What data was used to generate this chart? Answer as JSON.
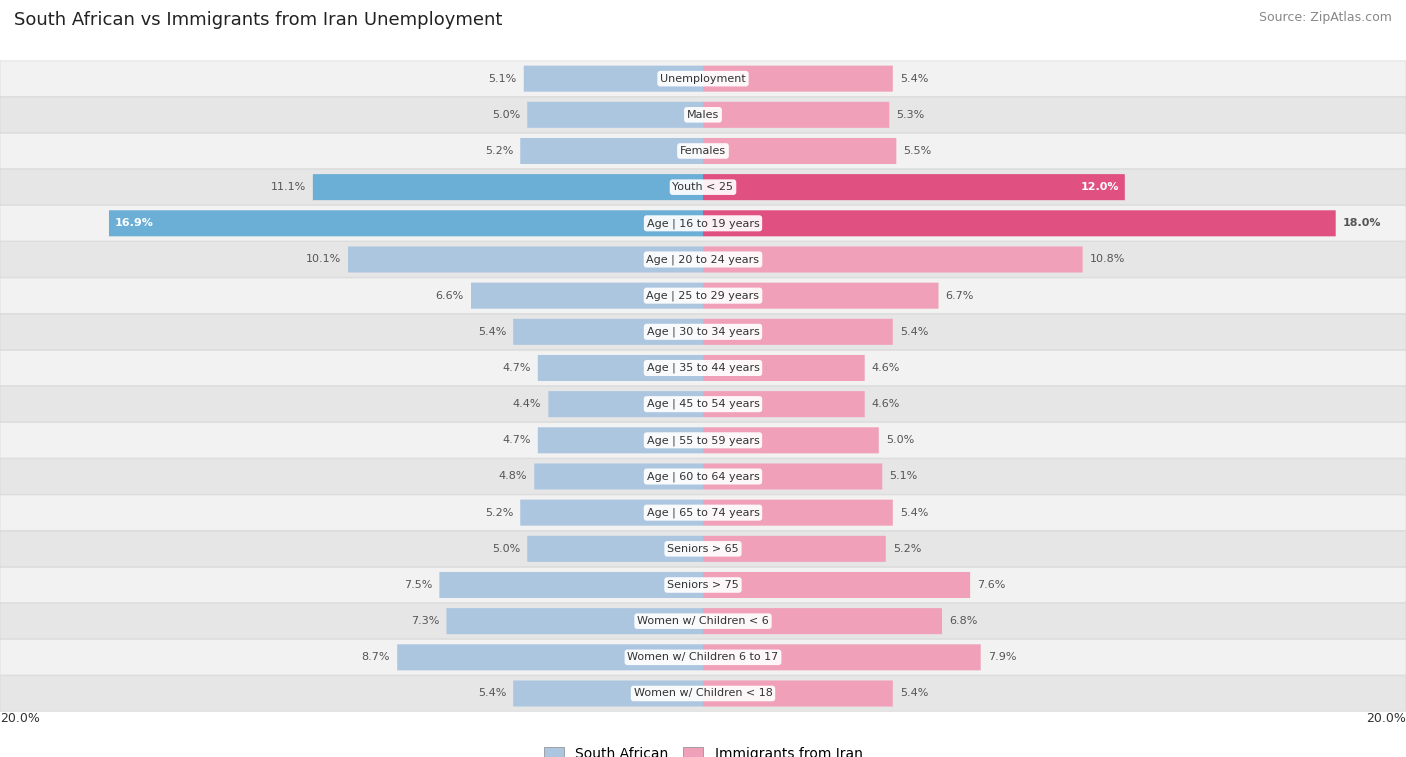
{
  "title": "South African vs Immigrants from Iran Unemployment",
  "source": "Source: ZipAtlas.com",
  "categories": [
    "Unemployment",
    "Males",
    "Females",
    "Youth < 25",
    "Age | 16 to 19 years",
    "Age | 20 to 24 years",
    "Age | 25 to 29 years",
    "Age | 30 to 34 years",
    "Age | 35 to 44 years",
    "Age | 45 to 54 years",
    "Age | 55 to 59 years",
    "Age | 60 to 64 years",
    "Age | 65 to 74 years",
    "Seniors > 65",
    "Seniors > 75",
    "Women w/ Children < 6",
    "Women w/ Children 6 to 17",
    "Women w/ Children < 18"
  ],
  "south_african": [
    5.1,
    5.0,
    5.2,
    11.1,
    16.9,
    10.1,
    6.6,
    5.4,
    4.7,
    4.4,
    4.7,
    4.8,
    5.2,
    5.0,
    7.5,
    7.3,
    8.7,
    5.4
  ],
  "iran": [
    5.4,
    5.3,
    5.5,
    12.0,
    18.0,
    10.8,
    6.7,
    5.4,
    4.6,
    4.6,
    5.0,
    5.1,
    5.4,
    5.2,
    7.6,
    6.8,
    7.9,
    5.4
  ],
  "max_val": 20.0,
  "bar_color_sa": "#adc6e0",
  "bar_color_iran": "#f0a0b8",
  "bar_color_sa_highlight": "#6baed6",
  "bar_color_iran_highlight": "#e05080",
  "row_color_light": "#f2f2f2",
  "row_color_dark": "#e6e6e6",
  "text_color": "#333333",
  "value_color": "#555555",
  "legend_sa": "South African",
  "legend_iran": "Immigrants from Iran",
  "highlight_rows": [
    3,
    4
  ]
}
